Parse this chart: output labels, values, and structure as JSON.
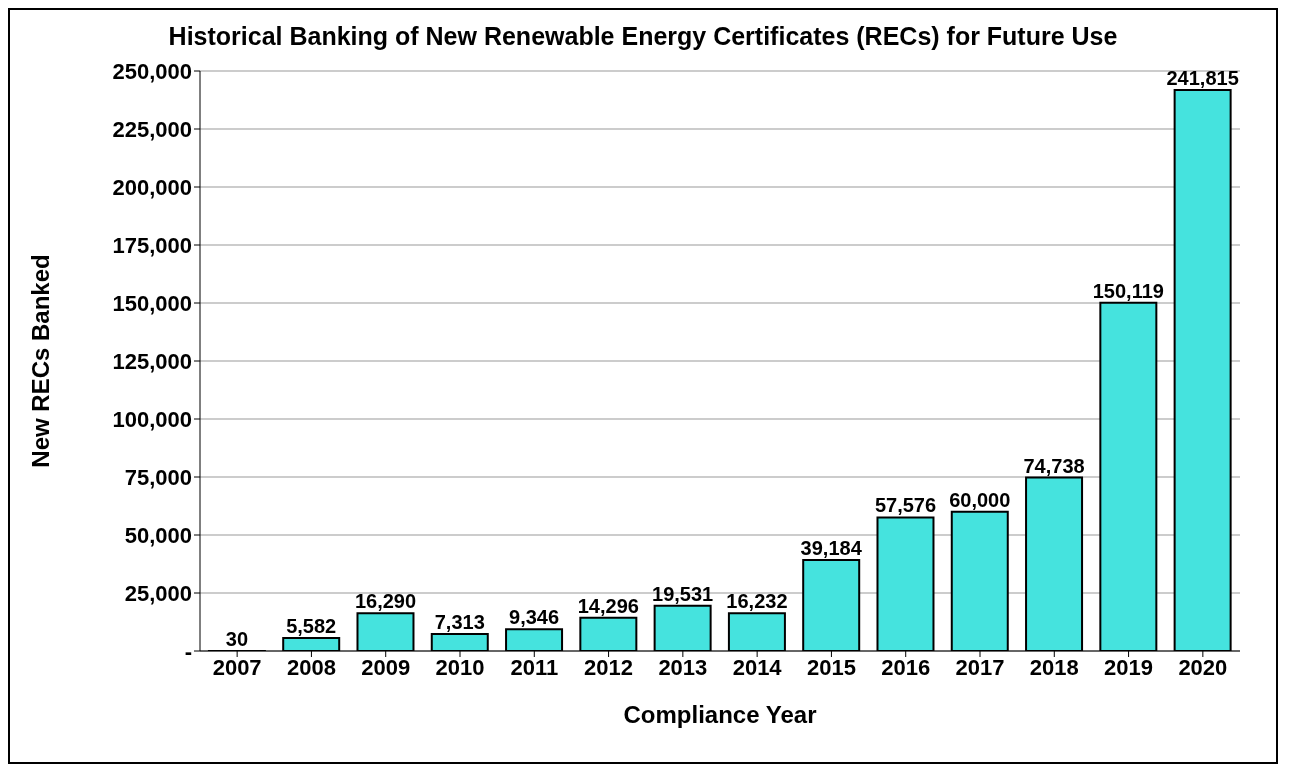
{
  "chart_data": {
    "type": "bar",
    "title": "Historical Banking of New Renewable Energy Certificates (RECs) for Future Use",
    "xlabel": "Compliance Year",
    "ylabel": "New RECs Banked",
    "categories": [
      "2007",
      "2008",
      "2009",
      "2010",
      "2011",
      "2012",
      "2013",
      "2014",
      "2015",
      "2016",
      "2017",
      "2018",
      "2019",
      "2020"
    ],
    "values": [
      30,
      5582,
      16290,
      7313,
      9346,
      14296,
      19531,
      16232,
      39184,
      57576,
      60000,
      74738,
      150119,
      241815
    ],
    "value_labels": [
      "30",
      "5,582",
      "16,290",
      "7,313",
      "9,346",
      "14,296",
      "19,531",
      "16,232",
      "39,184",
      "57,576",
      "60,000",
      "74,738",
      "150,119",
      "241,815"
    ],
    "color": "#45e3de",
    "ylim": [
      0,
      250000
    ],
    "yticks": [
      {
        "value": 0,
        "label": "-"
      },
      {
        "value": 25000,
        "label": "25,000"
      },
      {
        "value": 50000,
        "label": "50,000"
      },
      {
        "value": 75000,
        "label": "75,000"
      },
      {
        "value": 100000,
        "label": "100,000"
      },
      {
        "value": 125000,
        "label": "125,000"
      },
      {
        "value": 150000,
        "label": "150,000"
      },
      {
        "value": 175000,
        "label": "175,000"
      },
      {
        "value": 200000,
        "label": "200,000"
      },
      {
        "value": 225000,
        "label": "225,000"
      },
      {
        "value": 250000,
        "label": "250,000"
      }
    ],
    "grid": "y"
  }
}
